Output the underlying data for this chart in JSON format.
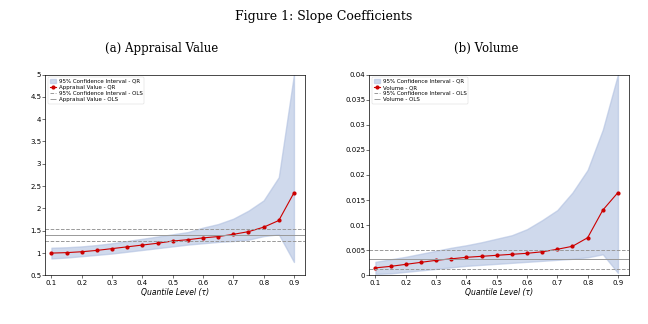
{
  "title": "Figure 1: Slope Coefficients",
  "panel_a_title": "(a) Appraisal Value",
  "panel_b_title": "(b) Volume",
  "xlabel": "Quantile Level (τ)",
  "quantiles": [
    0.1,
    0.15,
    0.2,
    0.25,
    0.3,
    0.35,
    0.4,
    0.45,
    0.5,
    0.55,
    0.6,
    0.65,
    0.7,
    0.75,
    0.8,
    0.85,
    0.9
  ],
  "panel_a": {
    "qr_coef": [
      1.0,
      1.01,
      1.03,
      1.06,
      1.1,
      1.14,
      1.18,
      1.22,
      1.27,
      1.3,
      1.34,
      1.37,
      1.42,
      1.48,
      1.58,
      1.73,
      2.35
    ],
    "qr_ci_lower": [
      0.88,
      0.9,
      0.93,
      0.96,
      0.99,
      1.03,
      1.07,
      1.11,
      1.15,
      1.19,
      1.22,
      1.25,
      1.27,
      1.3,
      1.38,
      1.42,
      0.8
    ],
    "qr_ci_upper": [
      1.12,
      1.13,
      1.15,
      1.18,
      1.22,
      1.27,
      1.32,
      1.37,
      1.42,
      1.47,
      1.57,
      1.65,
      1.77,
      1.95,
      2.18,
      2.7,
      5.0
    ],
    "ols_coef": 1.4,
    "ols_ci_lower": 1.26,
    "ols_ci_upper": 1.55,
    "ylim": [
      0.5,
      5.0
    ],
    "yticks": [
      0.5,
      1.0,
      1.5,
      2.0,
      2.5,
      3.0,
      3.5,
      4.0,
      4.5,
      5.0
    ],
    "legend_labels": [
      "95% Confidence Interval - QR",
      "Appraisal Value - QR",
      "95% Confidence Interval - OLS",
      "Appraisal Value - OLS"
    ]
  },
  "panel_b": {
    "qr_coef": [
      0.0015,
      0.0018,
      0.0022,
      0.0026,
      0.003,
      0.0033,
      0.0036,
      0.0038,
      0.004,
      0.0042,
      0.0044,
      0.0047,
      0.0052,
      0.0058,
      0.0075,
      0.013,
      0.0165
    ],
    "qr_ci_lower": [
      0.0003,
      0.0004,
      0.0007,
      0.001,
      0.0013,
      0.0016,
      0.0019,
      0.0021,
      0.0023,
      0.0025,
      0.0027,
      0.0029,
      0.0031,
      0.0033,
      0.0036,
      0.0042,
      0.0005
    ],
    "qr_ci_upper": [
      0.0027,
      0.0032,
      0.0037,
      0.0043,
      0.0049,
      0.0055,
      0.006,
      0.0066,
      0.0073,
      0.008,
      0.0092,
      0.011,
      0.013,
      0.0165,
      0.021,
      0.029,
      0.04
    ],
    "ols_coef": 0.0032,
    "ols_ci_lower": 0.0012,
    "ols_ci_upper": 0.005,
    "ylim": [
      0.0,
      0.04
    ],
    "yticks": [
      0.0,
      0.005,
      0.01,
      0.015,
      0.02,
      0.025,
      0.03,
      0.035,
      0.04
    ],
    "legend_labels": [
      "95% Confidence Interval - QR",
      "Volume - QR",
      "95% Confidence Interval - OLS",
      "Volume - OLS"
    ]
  },
  "ci_fill_color": "#b0c0e0",
  "ci_fill_alpha": 0.6,
  "qr_line_color": "#cc0000",
  "ols_line_color": "#999999",
  "ols_ci_color": "#999999",
  "xlim": [
    0.08,
    0.935
  ],
  "xticks": [
    0.1,
    0.2,
    0.3,
    0.4,
    0.5,
    0.6,
    0.7,
    0.8,
    0.9
  ]
}
